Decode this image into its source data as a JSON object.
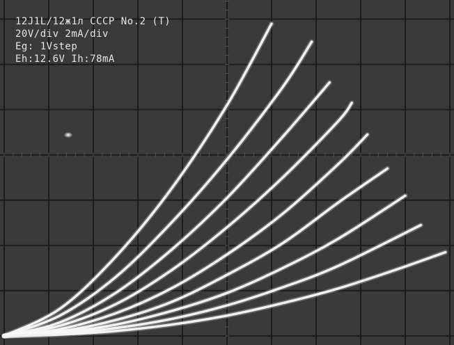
{
  "readout": {
    "tube": "12J1L/12ж1л CCCP No.2 (T)",
    "scale": "20V/div 2mA/div",
    "step": "Eg: 1Vstep",
    "heater": "Eh:12.6V Ih:78mA",
    "corner_fragment": "(T)"
  },
  "colors": {
    "screen": "#3a3a3a",
    "grid": "#1c1c1c",
    "trace": "#f2f2f2",
    "text": "#e6e6e6"
  },
  "chart_data": {
    "type": "line",
    "title": "",
    "xlabel": "",
    "ylabel": "",
    "x_unit": "V",
    "y_unit": "mA",
    "xlim": [
      0,
      200
    ],
    "ylim": [
      0,
      15
    ],
    "grid": true,
    "grid_divisions": {
      "x": 10,
      "y": 7.5
    },
    "series": [
      {
        "x": [
          0,
          25,
          50,
          75,
          100,
          120
        ],
        "y": [
          0,
          1.2,
          3.5,
          6.5,
          10.2,
          13.8
        ]
      },
      {
        "x": [
          0,
          25,
          50,
          75,
          100,
          125,
          138
        ],
        "y": [
          0,
          0.9,
          2.6,
          5.0,
          7.8,
          11.0,
          13.0
        ]
      },
      {
        "x": [
          0,
          25,
          50,
          75,
          100,
          125,
          146
        ],
        "y": [
          0,
          0.6,
          1.9,
          3.8,
          6.1,
          8.8,
          11.2
        ]
      },
      {
        "x": [
          0,
          25,
          50,
          75,
          100,
          125,
          150,
          156
        ],
        "y": [
          0,
          0.45,
          1.4,
          2.9,
          4.8,
          7.0,
          9.5,
          10.3
        ]
      },
      {
        "x": [
          0,
          25,
          50,
          75,
          100,
          125,
          150,
          163
        ],
        "y": [
          0,
          0.3,
          1.0,
          2.1,
          3.6,
          5.4,
          7.6,
          8.9
        ]
      },
      {
        "x": [
          0,
          25,
          50,
          75,
          100,
          125,
          150,
          172
        ],
        "y": [
          0,
          0.2,
          0.7,
          1.5,
          2.7,
          4.1,
          5.9,
          7.4
        ]
      },
      {
        "x": [
          0,
          25,
          50,
          75,
          100,
          125,
          150,
          180
        ],
        "y": [
          0,
          0.15,
          0.5,
          1.1,
          1.9,
          3.0,
          4.3,
          6.2
        ]
      },
      {
        "x": [
          0,
          25,
          50,
          75,
          100,
          125,
          150,
          187
        ],
        "y": [
          0,
          0.1,
          0.35,
          0.75,
          1.35,
          2.15,
          3.1,
          4.9
        ]
      },
      {
        "x": [
          0,
          25,
          50,
          75,
          100,
          125,
          150,
          175,
          198
        ],
        "y": [
          0,
          0.06,
          0.22,
          0.5,
          0.9,
          1.45,
          2.1,
          2.9,
          3.7
        ]
      }
    ]
  }
}
